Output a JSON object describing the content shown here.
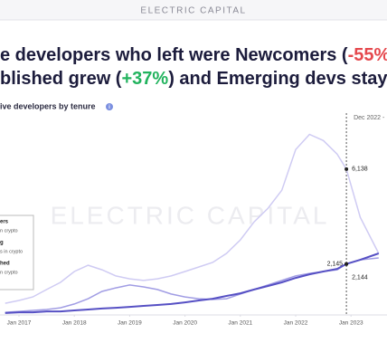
{
  "brand": "ELECTRIC CAPITAL",
  "headline": [
    [
      {
        "text": "e developers who left were Newcomers ("
      },
      {
        "text": "-55%",
        "color": "#e5484d"
      }
    ],
    [
      {
        "text": "blished grew ("
      },
      {
        "text": "+37%",
        "color": "#22b35e"
      },
      {
        "text": ") and Emerging devs stay"
      }
    ]
  ],
  "chart_data": {
    "type": "line",
    "title": "ive developers by tenure",
    "watermark": "ELECTRIC CAPITAL",
    "marker": {
      "x": "2022-12",
      "label": "Dec 2022 -"
    },
    "x": [
      "2016-10",
      "2017-01",
      "2017-04",
      "2017-07",
      "2017-10",
      "2018-01",
      "2018-04",
      "2018-07",
      "2018-10",
      "2019-01",
      "2019-04",
      "2019-07",
      "2019-10",
      "2020-01",
      "2020-04",
      "2020-07",
      "2020-10",
      "2021-01",
      "2021-04",
      "2021-07",
      "2021-10",
      "2022-01",
      "2022-04",
      "2022-07",
      "2022-10",
      "2022-12",
      "2023-03",
      "2023-07"
    ],
    "xlim": [
      "2016-10",
      "2023-08"
    ],
    "xticks": [
      {
        "value": "2017-01",
        "label": "Jan 2017"
      },
      {
        "value": "2018-01",
        "label": "Jan 2018"
      },
      {
        "value": "2019-01",
        "label": "Jan 2019"
      },
      {
        "value": "2020-01",
        "label": "Jan 2020"
      },
      {
        "value": "2021-01",
        "label": "Jan 2021"
      },
      {
        "value": "2022-01",
        "label": "Jan 2022"
      },
      {
        "value": "2023-01",
        "label": "Jan 2023"
      }
    ],
    "ylim": [
      0,
      8000
    ],
    "series": [
      {
        "name": "ers",
        "detail": "n crypto",
        "color": "#cfcbf3",
        "values": [
          490,
          610,
          760,
          1070,
          1370,
          1830,
          2090,
          1900,
          1640,
          1520,
          1450,
          1520,
          1640,
          1830,
          2020,
          2210,
          2590,
          3160,
          3920,
          4490,
          5250,
          6960,
          7600,
          7340,
          6770,
          6138,
          4110,
          2590
        ],
        "value_labels": [
          null,
          null,
          null,
          null,
          null,
          null,
          null,
          null,
          null,
          null,
          null,
          null,
          null,
          null,
          null,
          null,
          null,
          null,
          null,
          null,
          null,
          null,
          null,
          null,
          null,
          "6,138",
          null,
          null
        ]
      },
      {
        "name": "g",
        "detail": "s in crypto",
        "color": "#a19de4",
        "values": [
          110,
          150,
          190,
          230,
          300,
          460,
          680,
          990,
          1140,
          1260,
          1180,
          1070,
          880,
          760,
          680,
          650,
          680,
          880,
          1070,
          1260,
          1450,
          1640,
          1750,
          1830,
          1900,
          2144,
          2320,
          2400
        ],
        "value_labels": [
          null,
          null,
          null,
          null,
          null,
          null,
          null,
          null,
          null,
          null,
          null,
          null,
          null,
          null,
          null,
          null,
          null,
          null,
          null,
          null,
          null,
          null,
          null,
          null,
          null,
          "2,144",
          null,
          null
        ]
      },
      {
        "name": "hed",
        "detail": "n crypto",
        "color": "#5650c4",
        "values": [
          80,
          110,
          110,
          150,
          150,
          190,
          230,
          270,
          300,
          340,
          380,
          420,
          460,
          530,
          610,
          680,
          800,
          910,
          1070,
          1220,
          1370,
          1560,
          1710,
          1830,
          1940,
          2145,
          2320,
          2590
        ],
        "value_labels": [
          null,
          null,
          null,
          null,
          null,
          null,
          null,
          null,
          null,
          null,
          null,
          null,
          null,
          null,
          null,
          null,
          null,
          null,
          null,
          null,
          null,
          null,
          null,
          null,
          null,
          "2,145",
          null,
          null
        ]
      }
    ]
  }
}
